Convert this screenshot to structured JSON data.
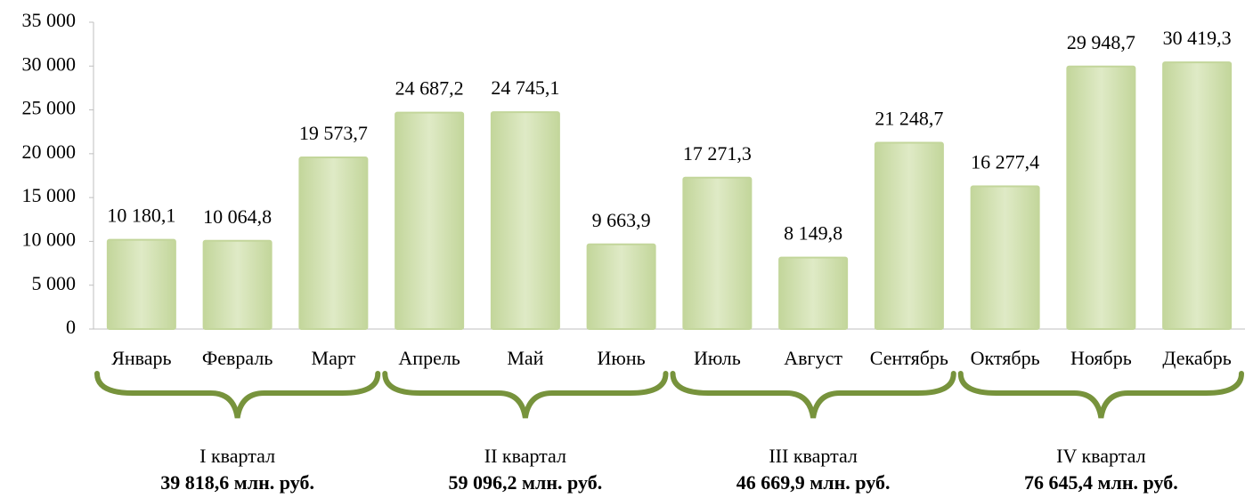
{
  "chart_data": {
    "type": "bar",
    "categories": [
      "Январь",
      "Февраль",
      "Март",
      "Апрель",
      "Май",
      "Июнь",
      "Июль",
      "Август",
      "Сентябрь",
      "Октябрь",
      "Ноябрь",
      "Декабрь"
    ],
    "values": [
      10180.1,
      10064.8,
      19573.7,
      24687.2,
      24745.1,
      9663.9,
      17271.3,
      8149.8,
      21248.7,
      16277.4,
      29948.7,
      30419.3
    ],
    "value_labels": [
      "10 180,1",
      "10 064,8",
      "19 573,7",
      "24 687,2",
      "24 745,1",
      "9 663,9",
      "17 271,3",
      "8 149,8",
      "21 248,7",
      "16 277,4",
      "29 948,7",
      "30 419,3"
    ],
    "color": "#c3d69b",
    "ylim": [
      0,
      35000
    ],
    "yticks": [
      0,
      {
        "value": 5000,
        "label": "5 000"
      },
      {
        "value": 10000,
        "label": "10 000"
      },
      {
        "value": 15000,
        "label": "15 000"
      },
      {
        "value": 20000,
        "label": "20 000"
      },
      {
        "value": 25000,
        "label": "25 000"
      },
      {
        "value": 30000,
        "label": "30 000"
      },
      {
        "value": 35000,
        "label": "35 000"
      }
    ],
    "grid": false,
    "annotations": [
      {
        "label": "I квартал",
        "text": "39 818,6 млн. руб."
      },
      {
        "label": "II квартал",
        "text": "59 096,2 млн. руб."
      },
      {
        "label": "III квартал",
        "text": "46 669,9 млн. руб."
      },
      {
        "label": "IV квартал",
        "text": "76 645,4 млн. руб."
      }
    ]
  }
}
